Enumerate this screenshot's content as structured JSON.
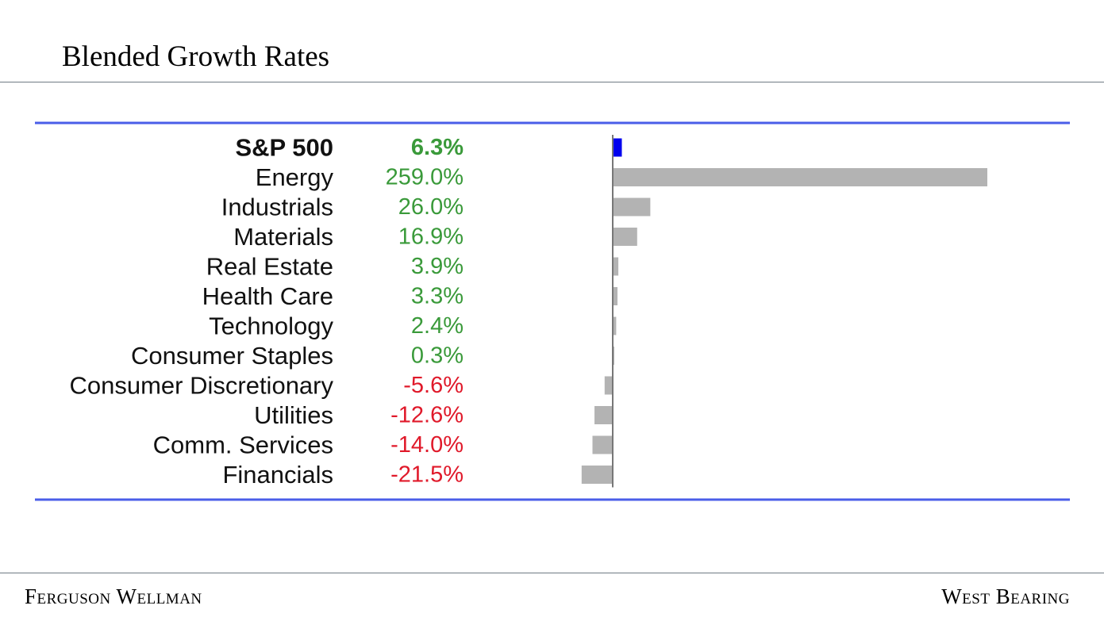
{
  "slide": {
    "title": "Blended Growth Rates",
    "footer_left": "Ferguson Wellman",
    "footer_right": "West Bearing"
  },
  "colors": {
    "positive": "#3a9a3a",
    "negative": "#e0192a",
    "bar_highlight": "#0000ee",
    "bar_default": "#b3b3b3",
    "frame_line": "#4a5ee8"
  },
  "chart_data": {
    "type": "bar",
    "orientation": "horizontal",
    "categories": [
      "S&P 500",
      "Energy",
      "Industrials",
      "Materials",
      "Real Estate",
      "Health Care",
      "Technology",
      "Consumer Staples",
      "Consumer Discretionary",
      "Utilities",
      "Comm. Services",
      "Financials"
    ],
    "values": [
      6.3,
      259.0,
      26.0,
      16.9,
      3.9,
      3.3,
      2.4,
      0.3,
      -5.6,
      -12.6,
      -14.0,
      -21.5
    ],
    "value_labels": [
      "6.3%",
      "259.0%",
      "26.0%",
      "16.9%",
      "3.9%",
      "3.3%",
      "2.4%",
      "0.3%",
      "-5.6%",
      "-12.6%",
      "-14.0%",
      "-21.5%"
    ],
    "highlight_index": 0,
    "xlim": [
      -21.5,
      259.0
    ],
    "grid": false,
    "legend": "none"
  }
}
